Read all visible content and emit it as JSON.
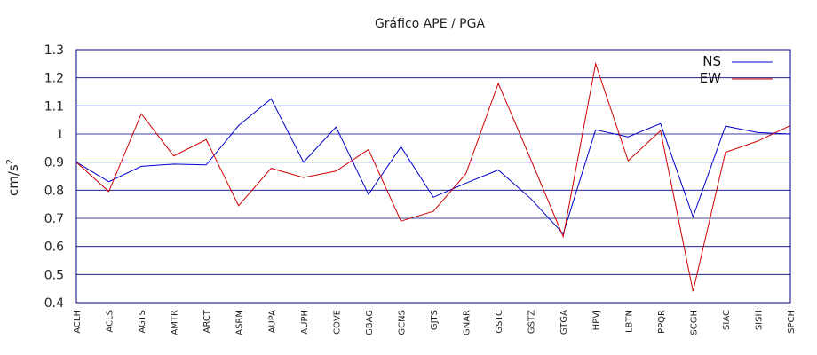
{
  "chart_data": {
    "type": "line",
    "title": "Gráfico  APE / PGA",
    "ylabel_base": "cm/s",
    "ylabel_exp": "2",
    "ylim": [
      0.4,
      1.3
    ],
    "yticks": [
      "0.4",
      "0.5",
      "0.6",
      "0.7",
      "0.8",
      "0.9",
      "1",
      "1.1",
      "1.2",
      "1.3"
    ],
    "ytick_values": [
      0.4,
      0.5,
      0.6,
      0.7,
      0.8,
      0.9,
      1.0,
      1.1,
      1.2,
      1.3
    ],
    "grid": true,
    "legend_position": "top-right",
    "categories": [
      "ACLH",
      "ACLS",
      "AGTS",
      "AMTR",
      "ARCT",
      "ASRM",
      "AUPA",
      "AUPH",
      "COVE",
      "GBAG",
      "GCNS",
      "GJTS",
      "GNAR",
      "GSTC",
      "GSTZ",
      "GTGA",
      "HPVJ",
      "LBTN",
      "PPQR",
      "SCGH",
      "SIAC",
      "SISH",
      "SPCH"
    ],
    "series": [
      {
        "name": "NS",
        "color": "#0000cc",
        "values": [
          0.9,
          0.83,
          0.885,
          0.893,
          0.89,
          1.03,
          1.125,
          0.9,
          1.025,
          0.785,
          0.955,
          0.775,
          0.825,
          0.872,
          0.77,
          0.645,
          1.015,
          0.99,
          1.037,
          0.705,
          1.028,
          1.005,
          1.0
        ]
      },
      {
        "name": "EW",
        "color": "#cc0000",
        "values": [
          0.9,
          0.795,
          1.072,
          0.922,
          0.98,
          0.745,
          0.878,
          0.845,
          0.868,
          0.945,
          0.69,
          0.725,
          0.858,
          1.18,
          0.91,
          0.635,
          1.25,
          0.905,
          1.012,
          0.44,
          0.935,
          0.975,
          1.03
        ]
      }
    ]
  }
}
